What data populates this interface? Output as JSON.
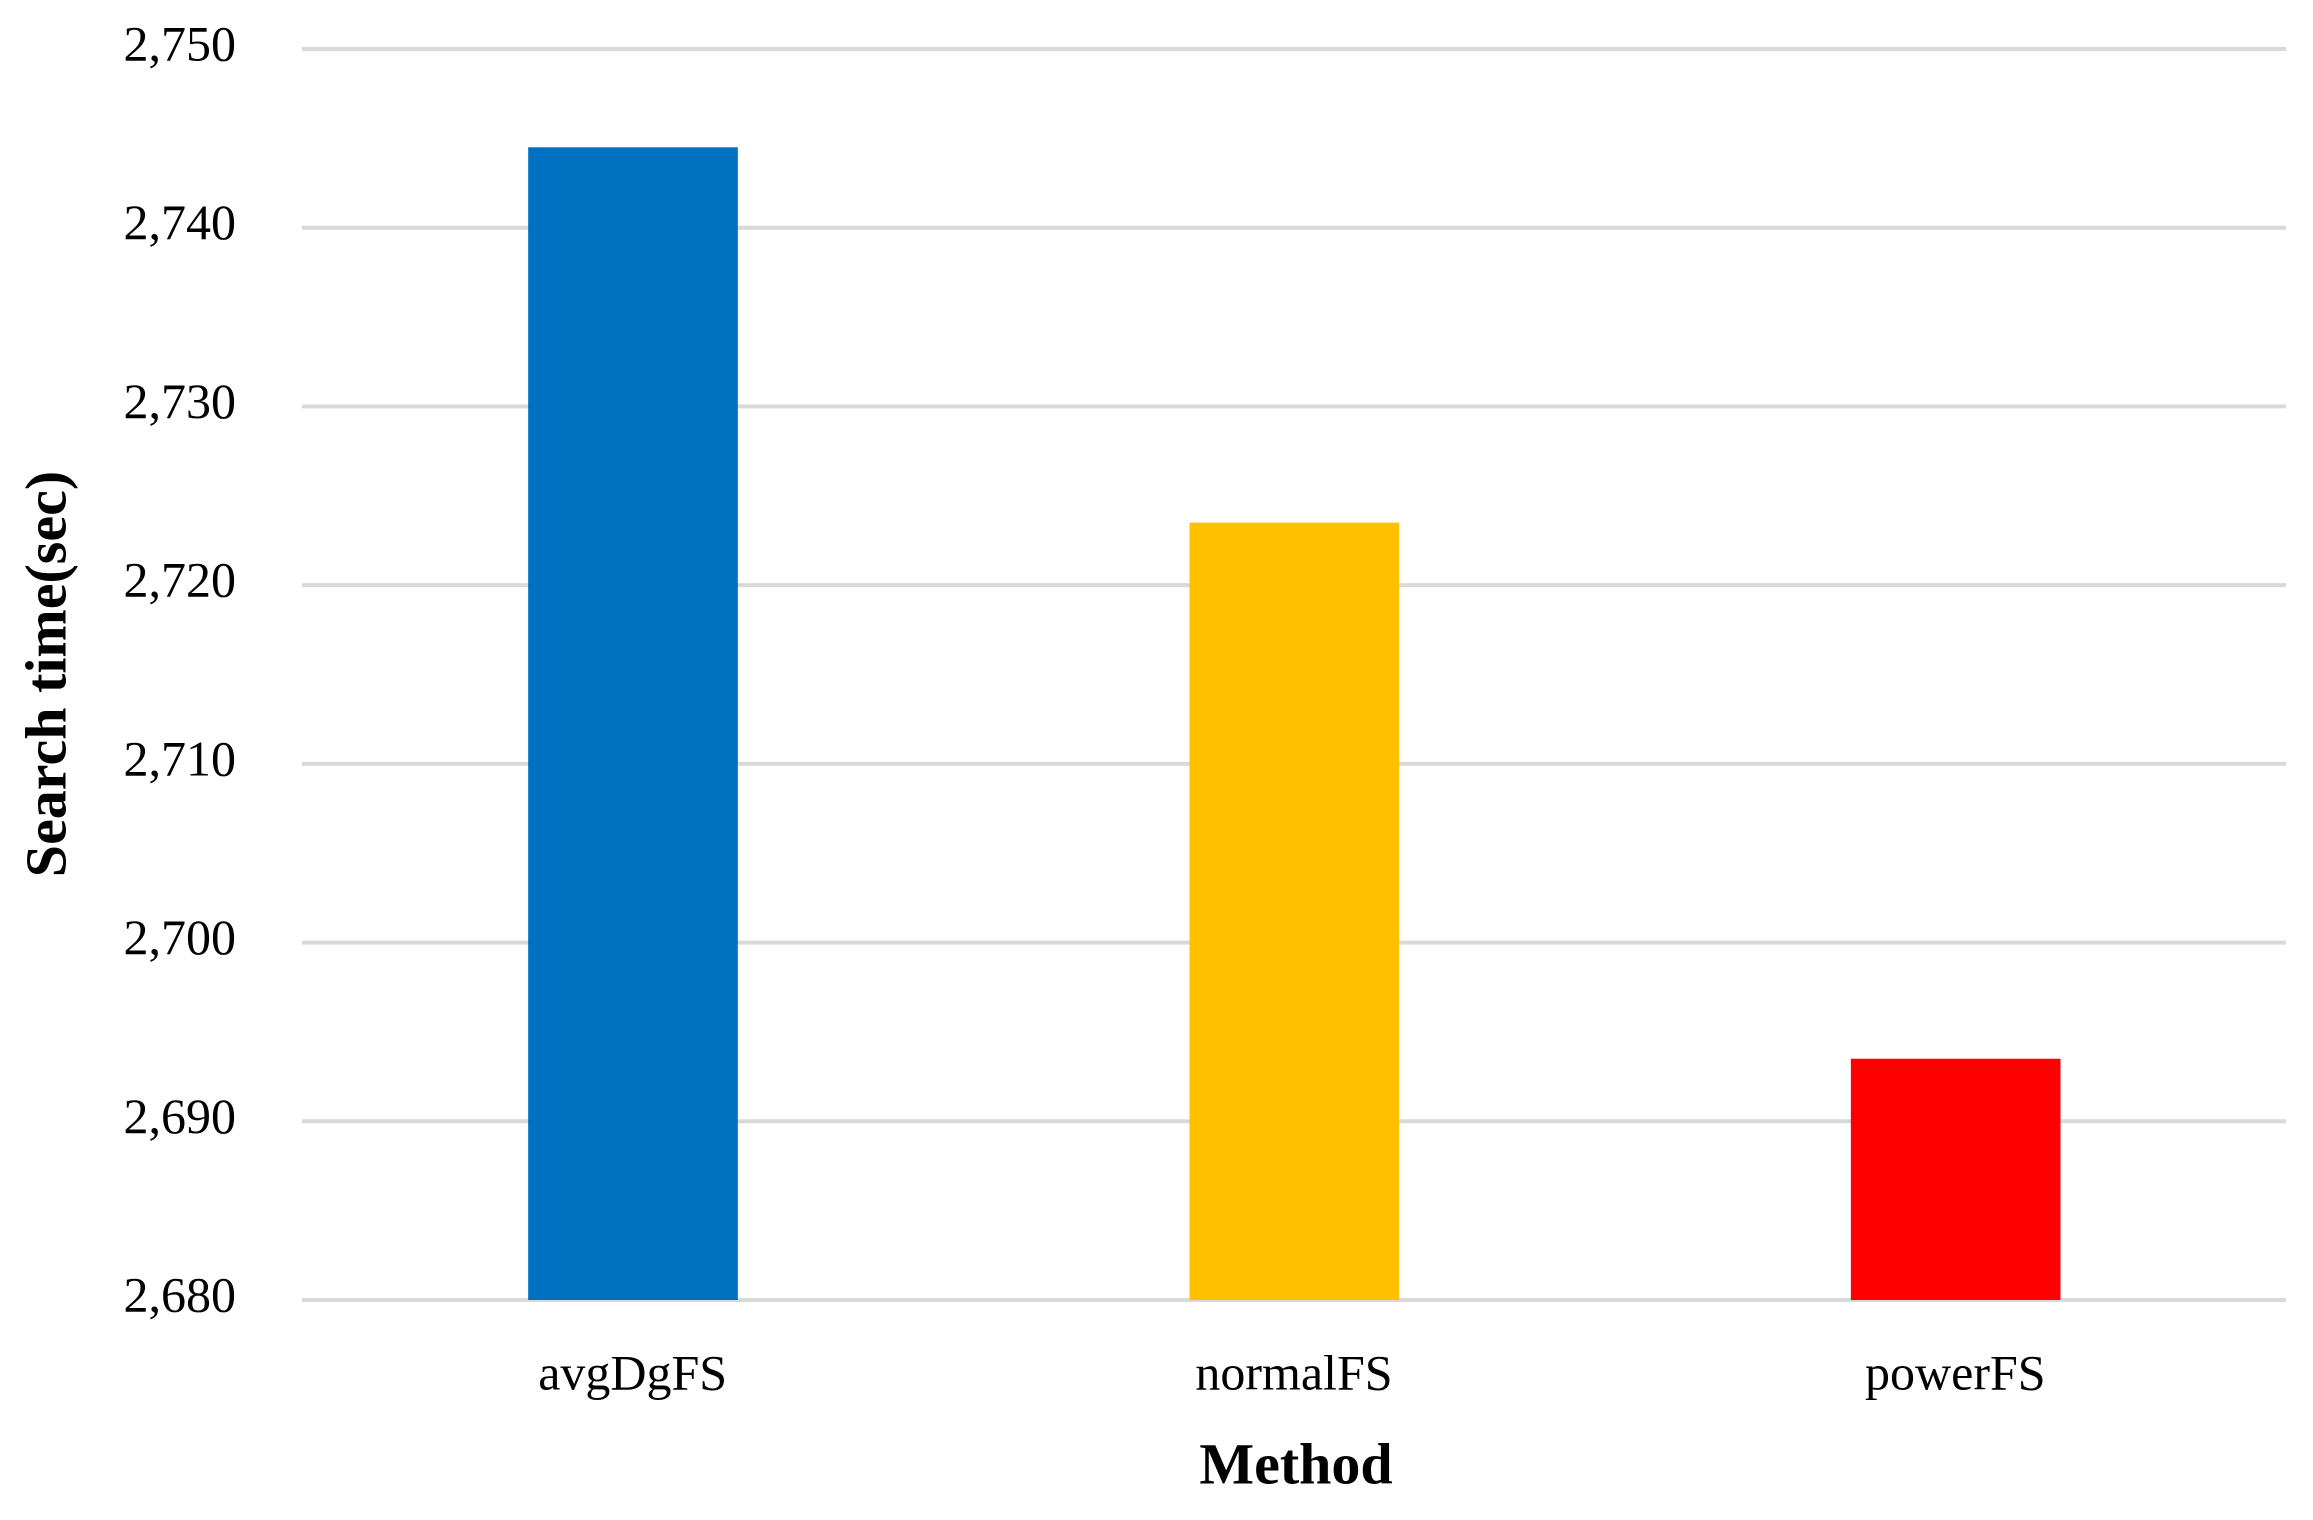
{
  "chart_data": {
    "type": "bar",
    "x_label": "Method",
    "y_label": "Search time(sec)",
    "categories": [
      "avgDgFS",
      "normalFS",
      "powerFS"
    ],
    "values": [
      2744.5,
      2723.5,
      2693.5
    ],
    "colors": [
      "#0070c0",
      "#ffc000",
      "#ff0000"
    ],
    "ylim": [
      2680,
      2750
    ],
    "yticks": [
      {
        "value": 2680,
        "label": "2,680"
      },
      {
        "value": 2690,
        "label": "2,690"
      },
      {
        "value": 2700,
        "label": "2,700"
      },
      {
        "value": 2710,
        "label": "2,710"
      },
      {
        "value": 2720,
        "label": "2,720"
      },
      {
        "value": 2730,
        "label": "2,730"
      },
      {
        "value": 2740,
        "label": "2,740"
      },
      {
        "value": 2750,
        "label": "2,750"
      }
    ],
    "grid": true
  }
}
